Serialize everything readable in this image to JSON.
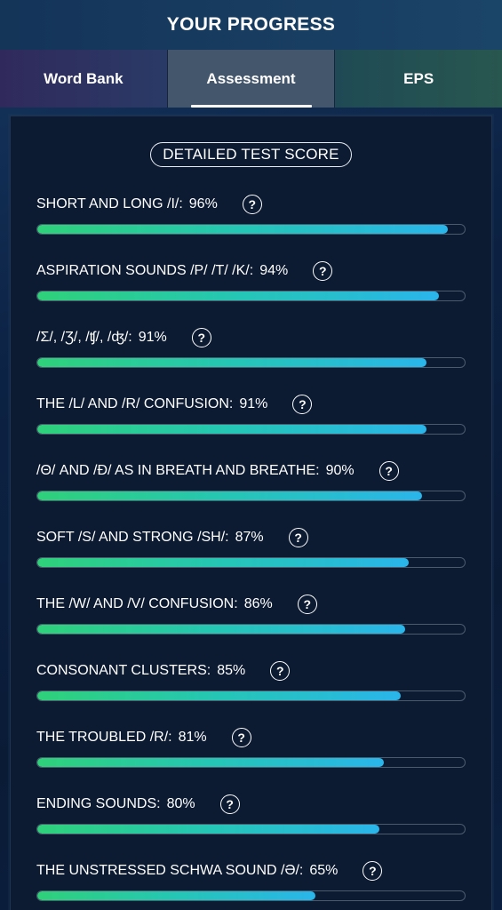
{
  "header": {
    "title": "YOUR PROGRESS"
  },
  "tabs": [
    {
      "label": "Word Bank",
      "active": false
    },
    {
      "label": "Assessment",
      "active": true
    },
    {
      "label": "EPS",
      "active": false
    }
  ],
  "section": {
    "title": "DETAILED TEST SCORE"
  },
  "help_icon": {
    "glyph": "?",
    "name": "question-mark-icon"
  },
  "scores": [
    {
      "label": "SHORT AND LONG /I/:",
      "percent_text": "96%",
      "value": 96
    },
    {
      "label": "ASPIRATION SOUNDS /P/ /T/ /K/:",
      "percent_text": "94%",
      "value": 94
    },
    {
      "label": "/Σ/, /Ʒ/, /ʧ/, /ʤ/:",
      "percent_text": "91%",
      "value": 91
    },
    {
      "label": "THE /L/ AND /R/ CONFUSION:",
      "percent_text": "91%",
      "value": 91
    },
    {
      "label": "/Θ/ AND /Ð/ AS IN BREATH AND BREATHE:",
      "percent_text": "90%",
      "value": 90
    },
    {
      "label": "SOFT /S/ AND STRONG /SH/:",
      "percent_text": "87%",
      "value": 87
    },
    {
      "label": "THE /W/ AND /V/ CONFUSION:",
      "percent_text": "86%",
      "value": 86
    },
    {
      "label": "CONSONANT CLUSTERS:",
      "percent_text": "85%",
      "value": 85
    },
    {
      "label": "THE TROUBLED /R/:",
      "percent_text": "81%",
      "value": 81
    },
    {
      "label": "ENDING SOUNDS:",
      "percent_text": "80%",
      "value": 80
    },
    {
      "label": "THE UNSTRESSED SCHWA SOUND /Ə/:",
      "percent_text": "65%",
      "value": 65
    }
  ],
  "colors": {
    "bar_start": "#2fd17a",
    "bar_end": "#2ab5ea",
    "active_tab": "#44566c",
    "panel_bg": "#0c1b32"
  }
}
